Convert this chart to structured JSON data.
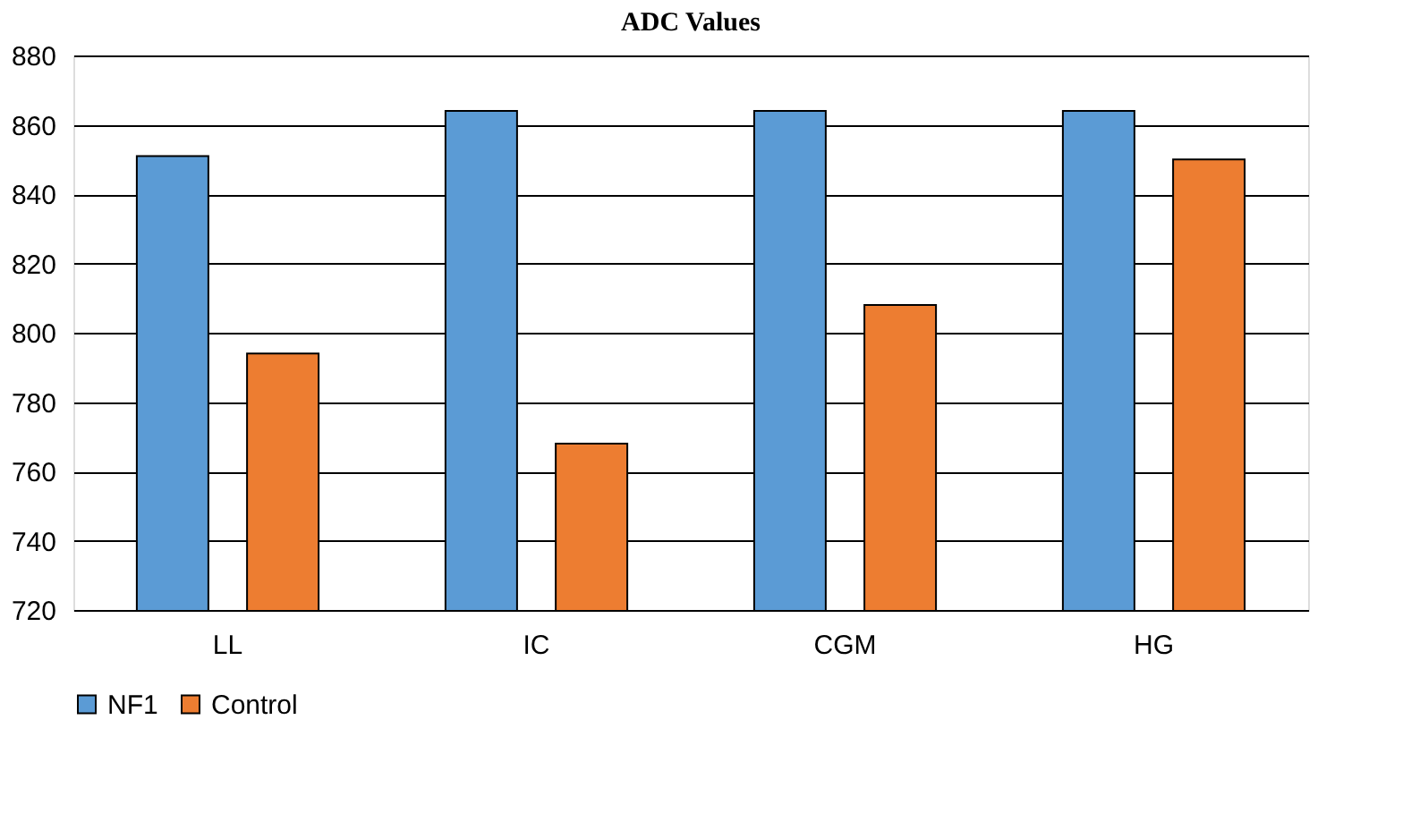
{
  "chart_data": {
    "type": "bar",
    "title": "ADC Values",
    "categories": [
      "LL",
      "IC",
      "CGM",
      "HG"
    ],
    "series": [
      {
        "name": "NF1",
        "color": "#5b9bd5",
        "values": [
          851,
          864,
          864,
          864
        ]
      },
      {
        "name": "Control",
        "color": "#ed7d31",
        "values": [
          794,
          768,
          808,
          850
        ]
      }
    ],
    "ylim": [
      720,
      880
    ],
    "yticks": [
      720,
      740,
      760,
      780,
      800,
      820,
      840,
      860,
      880
    ],
    "grid": "y",
    "legend": "bottom"
  }
}
